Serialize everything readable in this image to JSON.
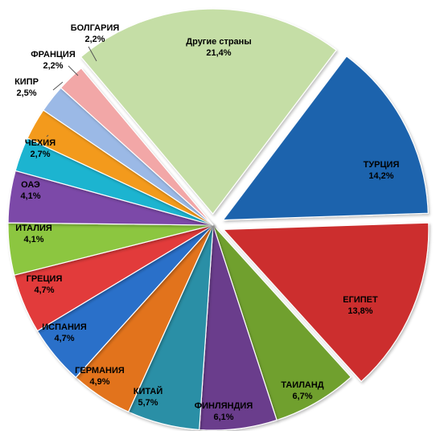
{
  "chart_data": {
    "type": "pie",
    "title": "",
    "start_angle_deg": 37,
    "slices": [
      {
        "name": "ТУРЦИЯ",
        "pct": "14,2%",
        "value": 14.2,
        "color": "#1F64AD",
        "exploded": true,
        "label_color": "#000000"
      },
      {
        "name": "ЕГИПЕТ",
        "pct": "13,8%",
        "value": 13.8,
        "color": "#CC2E2E",
        "exploded": true,
        "label_color": "#000000"
      },
      {
        "name": "ТАИЛАНД",
        "pct": "6,7%",
        "value": 6.7,
        "color": "#6FA02E",
        "exploded": false,
        "label_color": "#000000"
      },
      {
        "name": "ФИНЛЯНДИЯ",
        "pct": "6,1%",
        "value": 6.1,
        "color": "#6A3D8C",
        "exploded": false,
        "label_color": "#000000"
      },
      {
        "name": "КИТАЙ",
        "pct": "5,7%",
        "value": 5.7,
        "color": "#2B8FA6",
        "exploded": false,
        "label_color": "#000000"
      },
      {
        "name": "ГЕРМАНИЯ",
        "pct": "4,9%",
        "value": 4.9,
        "color": "#E2731E",
        "exploded": false,
        "label_color": "#000000"
      },
      {
        "name": "ИСПАНИЯ",
        "pct": "4,7%",
        "value": 4.7,
        "color": "#2C6FC9",
        "exploded": false,
        "label_color": "#000000"
      },
      {
        "name": "ГРЕЦИЯ",
        "pct": "4,7%",
        "value": 4.7,
        "color": "#E23B3B",
        "exploded": false,
        "label_color": "#000000"
      },
      {
        "name": "ИТАЛИЯ",
        "pct": "4,1%",
        "value": 4.1,
        "color": "#8CC63F",
        "exploded": false,
        "label_color": "#000000"
      },
      {
        "name": "ОАЭ",
        "pct": "4,1%",
        "value": 4.1,
        "color": "#7B4AA8",
        "exploded": false,
        "label_color": "#000000"
      },
      {
        "name": "ЧЕХИЯ",
        "pct": "2,7%",
        "value": 2.7,
        "color": "#1EB4D0",
        "exploded": false,
        "label_color": "#000000"
      },
      {
        "name": "КИПР",
        "pct": "2,5%",
        "value": 2.5,
        "color": "#F39A1E",
        "exploded": false,
        "label_color": "#000000"
      },
      {
        "name": "ФРАНЦИЯ",
        "pct": "2,2%",
        "value": 2.2,
        "color": "#9BB9E6",
        "exploded": false,
        "label_color": "#000000"
      },
      {
        "name": "БОЛГАРИЯ",
        "pct": "2,2%",
        "value": 2.2,
        "color": "#F2A7A7",
        "exploded": false,
        "label_color": "#000000"
      },
      {
        "name": "Другие страны",
        "pct": "21,4%",
        "value": 21.4,
        "color": "#C5DEA6",
        "exploded": true,
        "label_color": "#000000"
      }
    ]
  }
}
